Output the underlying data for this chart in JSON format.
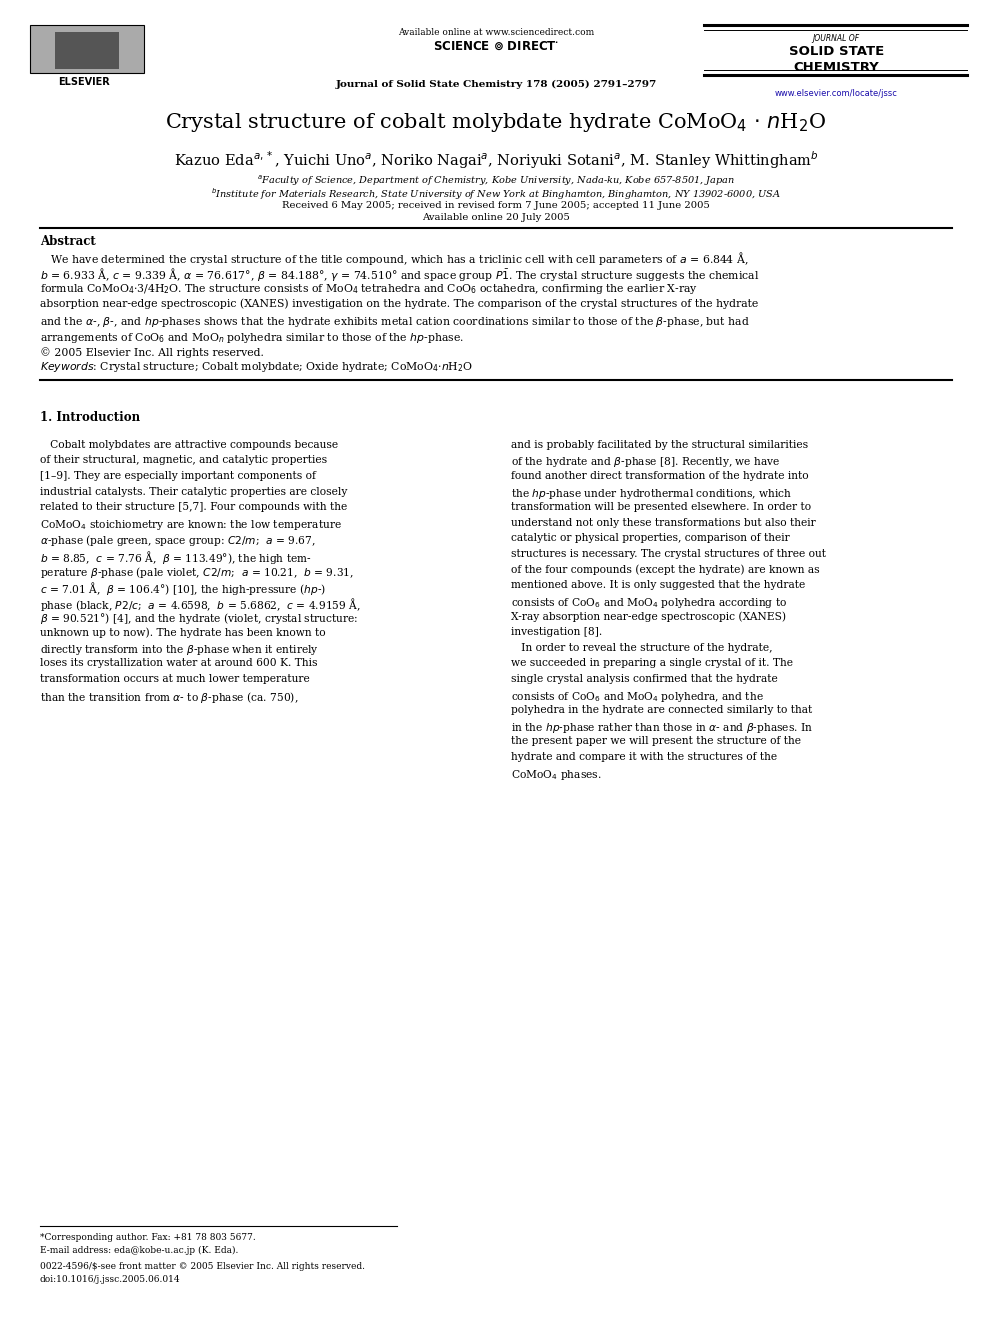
{
  "bg_color": "#ffffff",
  "page_width": 9.92,
  "page_height": 13.23,
  "dpi": 100,
  "header_available": "Available online at www.sciencedirect.com",
  "header_journal_line": "Journal of Solid State Chemistry 178 (2005) 2791–2797",
  "journal_name_line1": "JOURNAL OF",
  "journal_name_line2": "SOLID STATE",
  "journal_name_line3": "CHEMISTRY",
  "journal_url": "www.elsevier.com/locate/jssc",
  "title": "Crystal structure of cobalt molybdate hydrate CoMoO",
  "title2": " · ",
  "received": "Received 6 May 2005; received in revised form 7 June 2005; accepted 11 June 2005",
  "available": "Available online 20 July 2005",
  "abstract_title": "Abstract",
  "footnote_star": "*Corresponding author. Fax: +81 78 803 5677.",
  "footnote_email": "E-mail address: eda@kobe-u.ac.jp (K. Eda).",
  "footnote_issn": "0022-4596/$-see front matter © 2005 Elsevier Inc. All rights reserved.",
  "footnote_doi": "doi:10.1016/j.jssc.2005.06.014"
}
